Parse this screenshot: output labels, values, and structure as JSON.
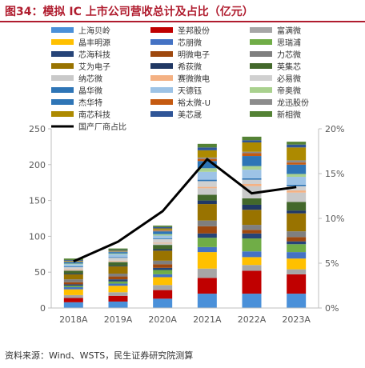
{
  "title": "图34：模拟 IC 上市公司营收总计及占比（亿元）",
  "source": "资料来源：Wind、WSTS，民生证券研究院测算",
  "chart_data": {
    "type": "bar",
    "stacked": true,
    "categories": [
      "2018A",
      "2019A",
      "2020A",
      "2021A",
      "2022A",
      "2023A"
    ],
    "ylim": [
      0,
      250
    ],
    "y_ticks": [
      "0",
      "50",
      "100",
      "150",
      "200",
      "250"
    ],
    "y2lim": [
      0,
      20
    ],
    "y2_ticks": [
      "0%",
      "5%",
      "10%",
      "15%",
      "20%"
    ],
    "series": [
      {
        "name": "上海贝岭",
        "color": "#4a90d9",
        "values": [
          8,
          9,
          13,
          20,
          20,
          20
        ]
      },
      {
        "name": "圣邦股份",
        "color": "#c00000",
        "values": [
          6,
          8,
          12,
          22,
          32,
          27
        ]
      },
      {
        "name": "富满微",
        "color": "#a6a6a6",
        "values": [
          4,
          5,
          7,
          13,
          8,
          7
        ]
      },
      {
        "name": "晶丰明源",
        "color": "#ffc000",
        "values": [
          8,
          9,
          11,
          23,
          11,
          15
        ]
      },
      {
        "name": "芯朋微",
        "color": "#4472c4",
        "values": [
          3,
          3,
          4,
          7,
          8,
          9
        ]
      },
      {
        "name": "思瑞浦",
        "color": "#70ad47",
        "values": [
          2,
          3,
          6,
          13,
          18,
          11
        ]
      },
      {
        "name": "芯海科技",
        "color": "#264478",
        "values": [
          2,
          3,
          3,
          6,
          7,
          4
        ]
      },
      {
        "name": "明微电子",
        "color": "#9e480e",
        "values": [
          3,
          4,
          5,
          10,
          5,
          6
        ]
      },
      {
        "name": "力芯微",
        "color": "#7f7f7f",
        "values": [
          4,
          4,
          5,
          8,
          7,
          8
        ]
      },
      {
        "name": "艾为电子",
        "color": "#997300",
        "values": [
          7,
          10,
          14,
          23,
          21,
          25
        ]
      },
      {
        "name": "希荻微",
        "color": "#203864",
        "values": [
          1,
          1,
          2,
          5,
          7,
          4
        ]
      },
      {
        "name": "英集芯",
        "color": "#43682b",
        "values": [
          4,
          5,
          6,
          8,
          9,
          12
        ]
      },
      {
        "name": "纳芯微",
        "color": "#c9c9c9",
        "values": [
          1,
          1,
          2,
          9,
          17,
          13
        ]
      },
      {
        "name": "赛微微电",
        "color": "#f4b183",
        "values": [
          1,
          1,
          1,
          2,
          3,
          3
        ]
      },
      {
        "name": "必易微",
        "color": "#d0d0d0",
        "values": [
          3,
          4,
          5,
          8,
          6,
          6
        ]
      },
      {
        "name": "晶华微",
        "color": "#2e75b6",
        "values": [
          1,
          1,
          1,
          2,
          2,
          2
        ]
      },
      {
        "name": "天德钰",
        "color": "#9dc3e6",
        "values": [
          3,
          4,
          4,
          11,
          12,
          11
        ]
      },
      {
        "name": "帝奥微",
        "color": "#a9d18e",
        "values": [
          1,
          1,
          2,
          5,
          5,
          4
        ]
      },
      {
        "name": "杰华特",
        "color": "#2e75b6",
        "values": [
          2,
          2,
          4,
          10,
          14,
          13
        ]
      },
      {
        "name": "裕太微-U",
        "color": "#c55a11",
        "values": [
          0,
          0,
          1,
          3,
          4,
          3
        ]
      },
      {
        "name": "龙迅股份",
        "color": "#8c8c8c",
        "values": [
          1,
          1,
          1,
          2,
          2,
          3
        ]
      },
      {
        "name": "南芯科技",
        "color": "#ad8a00",
        "values": [
          1,
          1,
          2,
          10,
          13,
          18
        ]
      },
      {
        "name": "美芯晟",
        "color": "#2f5597",
        "values": [
          1,
          1,
          2,
          4,
          3,
          4
        ]
      },
      {
        "name": "新相微",
        "color": "#548235",
        "values": [
          2,
          2,
          2,
          5,
          5,
          4
        ]
      }
    ],
    "line": {
      "name": "国产厂商占比",
      "color": "#000000",
      "values": [
        5.2,
        7.4,
        10.8,
        16.6,
        12.8,
        13.5
      ]
    }
  }
}
